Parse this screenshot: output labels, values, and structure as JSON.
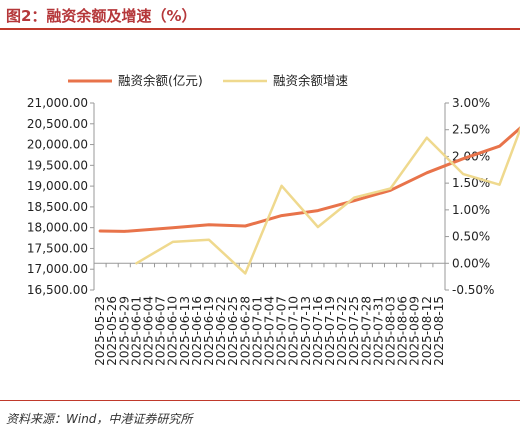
{
  "title": "图2：融资余额及增速（%）",
  "source": "资料来源：Wind，中港证券研究所",
  "colors": {
    "balance": "#e8734a",
    "growth": "#efd98e",
    "accent": "#b5373a"
  },
  "chart_data": {
    "type": "line",
    "title": "图2：融资余额及增速（%）",
    "legend_position": "top-left",
    "grid": false,
    "categories": [
      "2025-05-23",
      "2025-05-26",
      "2025-05-29",
      "2025-06-01",
      "2025-06-04",
      "2025-06-07",
      "2025-06-10",
      "2025-06-13",
      "2025-06-16",
      "2025-06-19",
      "2025-06-22",
      "2025-06-25",
      "2025-06-28",
      "2025-07-01",
      "2025-07-04",
      "2025-07-07",
      "2025-07-10",
      "2025-07-13",
      "2025-07-16",
      "2025-07-19",
      "2025-07-22",
      "2025-07-25",
      "2025-07-28",
      "2025-07-31",
      "2025-08-03",
      "2025-08-06",
      "2025-08-09",
      "2025-08-12",
      "2025-08-15"
    ],
    "y_left": {
      "ylim": [
        16500,
        21000
      ],
      "ticks": [
        "21,000.00",
        "20,500.00",
        "20,000.00",
        "19,500.00",
        "19,000.00",
        "18,500.00",
        "18,000.00",
        "17,500.00",
        "17,000.00",
        "16,500.00"
      ],
      "tick_values": [
        21000,
        20500,
        20000,
        19500,
        19000,
        18500,
        18000,
        17500,
        17000,
        16500
      ]
    },
    "y_right": {
      "ylim": [
        -0.5,
        3.0
      ],
      "ticks": [
        "3.00%",
        "2.50%",
        "2.00%",
        "1.50%",
        "1.00%",
        "0.50%",
        "0.00%",
        "-0.50%"
      ],
      "tick_values": [
        3.0,
        2.5,
        2.0,
        1.5,
        1.0,
        0.5,
        0.0,
        -0.5
      ]
    },
    "series": [
      {
        "name": "融资余额(亿元)",
        "axis": "left",
        "points": [
          [
            0,
            17920
          ],
          [
            2,
            17910
          ],
          [
            6,
            18000
          ],
          [
            9,
            18070
          ],
          [
            12,
            18040
          ],
          [
            15,
            18290
          ],
          [
            18,
            18410
          ],
          [
            21,
            18650
          ],
          [
            24,
            18900
          ],
          [
            27,
            19320
          ],
          [
            30,
            19660
          ],
          [
            33,
            19960
          ],
          [
            35,
            20470
          ]
        ]
      },
      {
        "name": "融资余额增速",
        "axis": "right",
        "points": [
          [
            3,
            0.0
          ],
          [
            6,
            0.4
          ],
          [
            9,
            0.44
          ],
          [
            12,
            -0.19
          ],
          [
            15,
            1.45
          ],
          [
            18,
            0.68
          ],
          [
            21,
            1.23
          ],
          [
            24,
            1.4
          ],
          [
            27,
            2.35
          ],
          [
            30,
            1.67
          ],
          [
            33,
            1.47
          ],
          [
            35,
            2.68
          ]
        ]
      }
    ]
  }
}
